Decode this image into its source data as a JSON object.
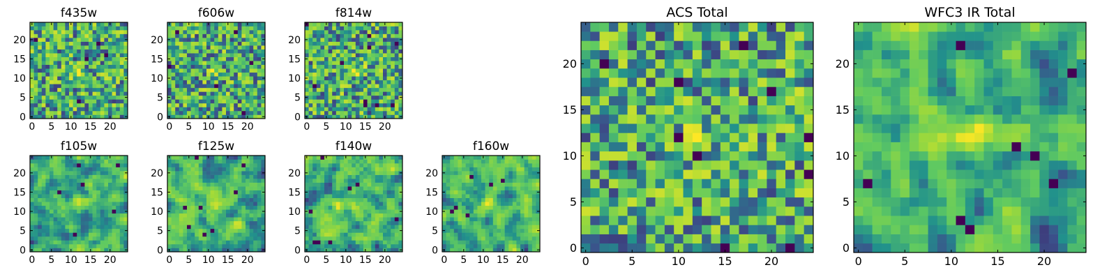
{
  "palette": [
    "#440154",
    "#3b528b",
    "#21918c",
    "#5ec962",
    "#a0da39",
    "#fde725"
  ],
  "chart_data": [
    {
      "type": "heatmap",
      "title": "f435w",
      "xticks": [
        0,
        5,
        10,
        15,
        20
      ],
      "yticks": [
        0,
        5,
        10,
        15,
        20
      ],
      "xlim": [
        -0.5,
        24.5
      ],
      "ylim": [
        -0.5,
        24.5
      ],
      "size": 25,
      "colormap": "viridis",
      "note": "pixel values approximate (noise image, bright source near center)"
    },
    {
      "type": "heatmap",
      "title": "f606w",
      "xticks": [
        0,
        5,
        10,
        15,
        20
      ],
      "yticks": [
        0,
        5,
        10,
        15,
        20
      ],
      "xlim": [
        -0.5,
        24.5
      ],
      "ylim": [
        -0.5,
        24.5
      ],
      "size": 25,
      "colormap": "viridis"
    },
    {
      "type": "heatmap",
      "title": "f814w",
      "xticks": [
        0,
        5,
        10,
        15,
        20
      ],
      "yticks": [
        0,
        5,
        10,
        15,
        20
      ],
      "xlim": [
        -0.5,
        24.5
      ],
      "ylim": [
        -0.5,
        24.5
      ],
      "size": 25,
      "colormap": "viridis"
    },
    {
      "type": "heatmap",
      "title": "f105w",
      "xticks": [
        0,
        5,
        10,
        15,
        20
      ],
      "yticks": [
        0,
        5,
        10,
        15,
        20
      ],
      "xlim": [
        -0.5,
        24.5
      ],
      "ylim": [
        -0.5,
        24.5
      ],
      "size": 25,
      "colormap": "viridis"
    },
    {
      "type": "heatmap",
      "title": "f125w",
      "xticks": [
        0,
        5,
        10,
        15,
        20
      ],
      "yticks": [
        0,
        5,
        10,
        15,
        20
      ],
      "xlim": [
        -0.5,
        24.5
      ],
      "ylim": [
        -0.5,
        24.5
      ],
      "size": 25,
      "colormap": "viridis"
    },
    {
      "type": "heatmap",
      "title": "f140w",
      "xticks": [
        0,
        5,
        10,
        15,
        20
      ],
      "yticks": [
        0,
        5,
        10,
        15,
        20
      ],
      "xlim": [
        -0.5,
        24.5
      ],
      "ylim": [
        -0.5,
        24.5
      ],
      "size": 25,
      "colormap": "viridis"
    },
    {
      "type": "heatmap",
      "title": "f160w",
      "xticks": [
        0,
        5,
        10,
        15,
        20
      ],
      "yticks": [
        0,
        5,
        10,
        15,
        20
      ],
      "xlim": [
        -0.5,
        24.5
      ],
      "ylim": [
        -0.5,
        24.5
      ],
      "size": 25,
      "colormap": "viridis"
    },
    {
      "type": "heatmap",
      "title": "ACS Total",
      "xticks": [
        0,
        5,
        10,
        15,
        20
      ],
      "yticks": [
        0,
        5,
        10,
        15,
        20
      ],
      "xlim": [
        -0.5,
        24.5
      ],
      "ylim": [
        -0.5,
        24.5
      ],
      "size": 25,
      "colormap": "viridis"
    },
    {
      "type": "heatmap",
      "title": "WFC3 IR Total",
      "xticks": [
        0,
        5,
        10,
        15,
        20
      ],
      "yticks": [
        0,
        5,
        10,
        15,
        20
      ],
      "xlim": [
        -0.5,
        24.5
      ],
      "ylim": [
        -0.5,
        24.5
      ],
      "size": 25,
      "colormap": "viridis"
    }
  ]
}
